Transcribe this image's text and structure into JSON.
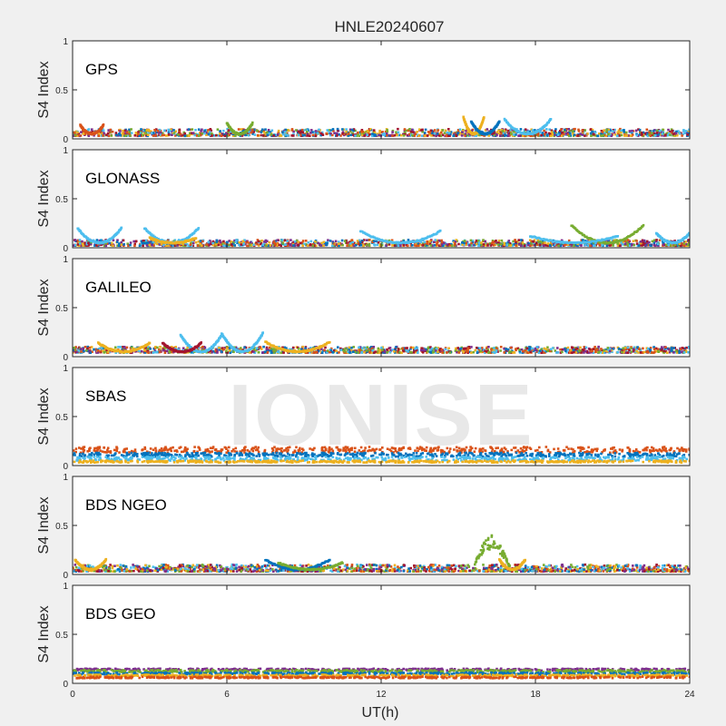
{
  "figure": {
    "title": "HNLE20240607",
    "xlabel": "UT(h)",
    "watermark": "IONISE",
    "background": "#f0f0f0",
    "axes_background": "#ffffff",
    "axis_color": "#262626"
  },
  "chart_data": [
    {
      "type": "scatter",
      "panel_label": "GPS",
      "ylabel": "S4 Index",
      "ylim": [
        0,
        1
      ],
      "xlim": [
        0,
        24
      ],
      "yticks": [
        0,
        0.5,
        1
      ],
      "ytick_labels": [
        "0",
        "0.5",
        "1"
      ],
      "xticks": [
        0,
        6,
        12,
        18,
        24
      ],
      "xtick_labels": [],
      "baseline_range": [
        0.03,
        0.1
      ],
      "series_colors": [
        "#0072bd",
        "#d95319",
        "#edb120",
        "#7e2f8e",
        "#77ac30",
        "#4dbeee",
        "#a2142f"
      ],
      "arcs": [
        {
          "start": 15.2,
          "end": 16.0,
          "peak": 0.22,
          "color": "#edb120"
        },
        {
          "start": 16.8,
          "end": 18.6,
          "peak": 0.2,
          "color": "#4dbeee"
        },
        {
          "start": 15.5,
          "end": 16.6,
          "peak": 0.18,
          "color": "#0072bd"
        },
        {
          "start": 0.3,
          "end": 1.2,
          "peak": 0.14,
          "color": "#d95319"
        },
        {
          "start": 6.0,
          "end": 7.0,
          "peak": 0.16,
          "color": "#77ac30"
        }
      ],
      "scintillation": []
    },
    {
      "type": "scatter",
      "panel_label": "GLONASS",
      "ylabel": "S4 Index",
      "ylim": [
        0,
        1
      ],
      "xlim": [
        0,
        24
      ],
      "yticks": [
        0,
        0.5,
        1
      ],
      "ytick_labels": [
        "0",
        "0.5",
        "1"
      ],
      "xticks": [
        0,
        6,
        12,
        18,
        24
      ],
      "xtick_labels": [],
      "baseline_range": [
        0.02,
        0.08
      ],
      "series_colors": [
        "#0072bd",
        "#d95319",
        "#edb120",
        "#7e2f8e",
        "#77ac30",
        "#4dbeee",
        "#a2142f"
      ],
      "arcs": [
        {
          "start": 0.2,
          "end": 1.9,
          "peak": 0.2,
          "color": "#4dbeee"
        },
        {
          "start": 2.8,
          "end": 4.9,
          "peak": 0.2,
          "color": "#4dbeee"
        },
        {
          "start": 11.2,
          "end": 14.3,
          "peak": 0.17,
          "color": "#4dbeee"
        },
        {
          "start": 19.4,
          "end": 22.2,
          "peak": 0.23,
          "color": "#77ac30"
        },
        {
          "start": 17.8,
          "end": 21.2,
          "peak": 0.12,
          "color": "#4dbeee"
        },
        {
          "start": 22.7,
          "end": 24.0,
          "peak": 0.15,
          "color": "#4dbeee"
        },
        {
          "start": 3.0,
          "end": 4.8,
          "peak": 0.1,
          "color": "#edb120"
        }
      ],
      "scintillation": []
    },
    {
      "type": "scatter",
      "panel_label": "GALILEO",
      "ylabel": "S4 Index",
      "ylim": [
        0,
        1
      ],
      "xlim": [
        0,
        24
      ],
      "yticks": [
        0,
        0.5,
        1
      ],
      "ytick_labels": [
        "0",
        "0.5",
        "1"
      ],
      "xticks": [
        0,
        6,
        12,
        18,
        24
      ],
      "xtick_labels": [],
      "baseline_range": [
        0.04,
        0.1
      ],
      "series_colors": [
        "#0072bd",
        "#d95319",
        "#edb120",
        "#7e2f8e",
        "#77ac30",
        "#4dbeee",
        "#a2142f"
      ],
      "arcs": [
        {
          "start": 4.2,
          "end": 5.8,
          "peak": 0.22,
          "color": "#4dbeee"
        },
        {
          "start": 5.8,
          "end": 7.4,
          "peak": 0.24,
          "color": "#4dbeee"
        },
        {
          "start": 1.0,
          "end": 3.0,
          "peak": 0.14,
          "color": "#edb120"
        },
        {
          "start": 7.5,
          "end": 10.0,
          "peak": 0.15,
          "color": "#edb120"
        },
        {
          "start": 3.5,
          "end": 5.0,
          "peak": 0.14,
          "color": "#a2142f"
        }
      ],
      "scintillation": []
    },
    {
      "type": "scatter",
      "panel_label": "SBAS",
      "ylabel": "S4 Index",
      "ylim": [
        0,
        1
      ],
      "xlim": [
        0,
        24
      ],
      "yticks": [
        0,
        0.5,
        1
      ],
      "ytick_labels": [
        "0",
        "0.5",
        "1"
      ],
      "xticks": [
        0,
        6,
        12,
        18,
        24
      ],
      "xtick_labels": [],
      "bands": [
        {
          "center": 0.16,
          "spread": 0.03,
          "color": "#d95319"
        },
        {
          "center": 0.11,
          "spread": 0.02,
          "color": "#0072bd"
        },
        {
          "center": 0.07,
          "spread": 0.02,
          "color": "#4dbeee"
        },
        {
          "center": 0.04,
          "spread": 0.01,
          "color": "#edb120"
        }
      ],
      "arcs": [],
      "scintillation": []
    },
    {
      "type": "scatter",
      "panel_label": "BDS NGEO",
      "ylabel": "S4 Index",
      "ylim": [
        0,
        1
      ],
      "xlim": [
        0,
        24
      ],
      "yticks": [
        0,
        0.5,
        1
      ],
      "ytick_labels": [
        "0",
        "0.5",
        "1"
      ],
      "xticks": [
        0,
        6,
        12,
        18,
        24
      ],
      "xtick_labels": [],
      "baseline_range": [
        0.03,
        0.1
      ],
      "series_colors": [
        "#0072bd",
        "#d95319",
        "#edb120",
        "#7e2f8e",
        "#77ac30",
        "#4dbeee",
        "#a2142f"
      ],
      "arcs": [
        {
          "start": 7.5,
          "end": 10.0,
          "peak": 0.15,
          "color": "#0072bd"
        },
        {
          "start": 0.1,
          "end": 1.3,
          "peak": 0.15,
          "color": "#edb120"
        },
        {
          "start": 16.6,
          "end": 17.6,
          "peak": 0.15,
          "color": "#edb120"
        },
        {
          "start": 8.0,
          "end": 10.5,
          "peak": 0.12,
          "color": "#77ac30"
        }
      ],
      "scintillation": [
        {
          "start": 15.6,
          "end": 17.0,
          "peak": 0.4,
          "color": "#77ac30"
        }
      ]
    },
    {
      "type": "scatter",
      "panel_label": "BDS GEO",
      "ylabel": "S4 Index",
      "ylim": [
        0,
        1
      ],
      "xlim": [
        0,
        24
      ],
      "yticks": [
        0,
        0.5,
        1
      ],
      "ytick_labels": [
        "0",
        "0.5",
        "1"
      ],
      "xticks": [
        0,
        6,
        12,
        18,
        24
      ],
      "xtick_labels": [
        "0",
        "6",
        "12",
        "18",
        "24"
      ],
      "bands": [
        {
          "center": 0.14,
          "spread": 0.01,
          "color": "#7e2f8e"
        },
        {
          "center": 0.125,
          "spread": 0.012,
          "color": "#77ac30"
        },
        {
          "center": 0.1,
          "spread": 0.01,
          "color": "#0072bd"
        },
        {
          "center": 0.08,
          "spread": 0.008,
          "color": "#edb120"
        },
        {
          "center": 0.06,
          "spread": 0.008,
          "color": "#d95319"
        }
      ],
      "arcs": [],
      "scintillation": []
    }
  ]
}
